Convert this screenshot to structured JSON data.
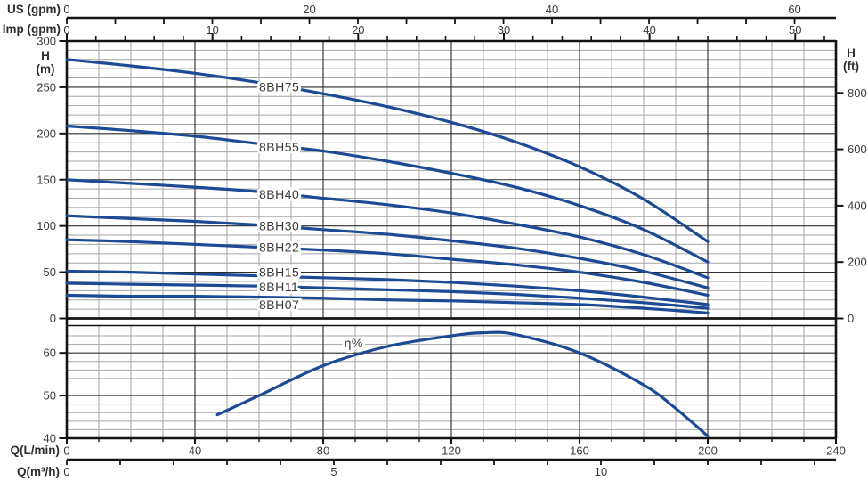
{
  "page": {
    "background": "#ffffff"
  },
  "colors": {
    "curve": "#1c4a94",
    "curve_edge": "#4a74b4",
    "grid_minor": "#a6a6a6",
    "grid_major": "#2b2b2b",
    "frame": "#141414",
    "tick_text": "#3a3a3a",
    "unit_text": "#2e2e2e"
  },
  "axes": {
    "us_gpm": {
      "label": "US (gpm)",
      "ticks": [
        0,
        20,
        40,
        60
      ],
      "minor_step_gpm": 4,
      "lmin_per_gpm": 3.785
    },
    "imp_gpm": {
      "label": "Imp (gpm)",
      "ticks": [
        0,
        10,
        20,
        30,
        40,
        50
      ],
      "minor_step_gpm": 2,
      "lmin_per_gpm": 4.546
    },
    "head_m": {
      "label": "H",
      "unit": "(m)",
      "ticks": [
        0,
        50,
        100,
        150,
        200,
        250,
        300
      ],
      "range": [
        0,
        300
      ],
      "minor_step": 10
    },
    "head_ft": {
      "label": "H",
      "unit": "(ft)",
      "ticks": [
        0,
        200,
        400,
        600,
        800
      ],
      "m_per_ft": 0.3048
    },
    "q_lmin": {
      "label": "Q(L/min)",
      "ticks": [
        0,
        40,
        80,
        120,
        160,
        200,
        240
      ],
      "range": [
        0,
        240
      ],
      "minor_step": 10
    },
    "q_m3h": {
      "label": "Q(m³/h)",
      "ticks": [
        0,
        5,
        10
      ],
      "minor_step": 1,
      "lmin_per_m3h": 16.667
    },
    "eta": {
      "ticks": [
        40,
        50,
        60
      ],
      "range": [
        40,
        66.4
      ],
      "minor_step": 2
    }
  },
  "chart_data": [
    {
      "type": "line",
      "title": "Pump head vs flow curves",
      "xlabel": "Q(L/min)",
      "ylabel": "H (m)",
      "xlim": [
        0,
        240
      ],
      "ylim": [
        0,
        300
      ],
      "grid": true,
      "x": [
        0,
        20,
        40,
        60,
        80,
        100,
        120,
        140,
        160,
        180,
        200
      ],
      "label_anchor_q": 60,
      "series": [
        {
          "name": "8BH75",
          "values": [
            280,
            273,
            265,
            255,
            243,
            229,
            212,
            191,
            164,
            129,
            83
          ],
          "label_dy": 5
        },
        {
          "name": "8BH55",
          "values": [
            208,
            203,
            197,
            189,
            181,
            170,
            157,
            142,
            122,
            96,
            61
          ],
          "label_dy": 5.5
        },
        {
          "name": "8BH40",
          "values": [
            150,
            146,
            142,
            137,
            130,
            123,
            114,
            102,
            88,
            69,
            44
          ],
          "label_dy": 5
        },
        {
          "name": "8BH30",
          "values": [
            111,
            108,
            105,
            101,
            96,
            91,
            84,
            76,
            65,
            51,
            33
          ],
          "label_dy": 4
        },
        {
          "name": "8BH22",
          "values": [
            85,
            83,
            80,
            77,
            74,
            70,
            64,
            58,
            50,
            39,
            25
          ],
          "label_dy": 3.5
        },
        {
          "name": "8BH15",
          "values": [
            51,
            50,
            48,
            46,
            44,
            42,
            39,
            35,
            30,
            23,
            15
          ],
          "label_dy": 0
        },
        {
          "name": "8BH11",
          "values": [
            38,
            37,
            36,
            35,
            33,
            31,
            29,
            26,
            22,
            17,
            11
          ],
          "label_dy": 5
        },
        {
          "name": "8BH07",
          "values": [
            25,
            24,
            24,
            23,
            22,
            20,
            19,
            17,
            15,
            11,
            6
          ],
          "label_dy": 13
        }
      ]
    },
    {
      "type": "line",
      "title": "Pump efficiency vs flow",
      "xlabel": "Q(L/min)",
      "ylabel": "η%",
      "xlim": [
        0,
        240
      ],
      "ylim": [
        40,
        66.4
      ],
      "grid": true,
      "label": "η%",
      "series": [
        {
          "name": "η%",
          "x": [
            47,
            60,
            80,
            100,
            120,
            130,
            140,
            160,
            180,
            190,
            200
          ],
          "values": [
            45.5,
            50,
            57,
            61.5,
            64,
            64.7,
            64.3,
            60,
            52.5,
            47,
            40.5
          ]
        }
      ]
    }
  ]
}
